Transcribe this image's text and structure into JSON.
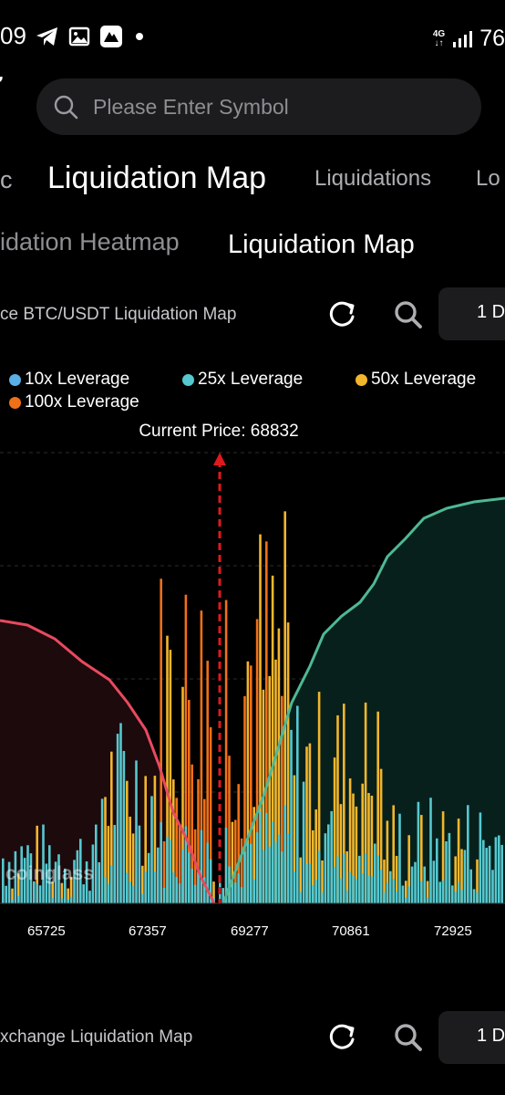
{
  "status_bar": {
    "time": "09",
    "network": "4G",
    "battery": "76"
  },
  "search": {
    "placeholder": "Please Enter Symbol"
  },
  "main_tabs": [
    {
      "label": "c"
    },
    {
      "label": "Liquidation Map",
      "active": true
    },
    {
      "label": "Liquidations"
    },
    {
      "label": "Lo"
    }
  ],
  "sub_tabs": [
    {
      "label": "idation Heatmap"
    },
    {
      "label": "Liquidation Map",
      "active": true
    }
  ],
  "card1": {
    "title": "ce BTC/USDT Liquidation Map",
    "range": "1 D"
  },
  "card2": {
    "title": "xchange Liquidation Map",
    "range": "1 D"
  },
  "chart_data": {
    "type": "bar",
    "legend": [
      {
        "name": "10x Leverage",
        "color": "#5ab0e6"
      },
      {
        "name": "25x Leverage",
        "color": "#55c8cf"
      },
      {
        "name": "50x Leverage",
        "color": "#f2b62c"
      },
      {
        "name": "100x Leverage",
        "color": "#f07018"
      }
    ],
    "current_price_label": "Current Price: 68832",
    "current_price": 68832,
    "x_ticks": [
      "65725",
      "67357",
      "69277",
      "70861",
      "72925"
    ],
    "watermark": "coinglass",
    "colors": {
      "short_line": "#e84a5f",
      "long_line": "#4fb894",
      "short_fill": "#1d0a0d",
      "long_fill": "#07201b",
      "price_line": "#e0191f"
    }
  }
}
